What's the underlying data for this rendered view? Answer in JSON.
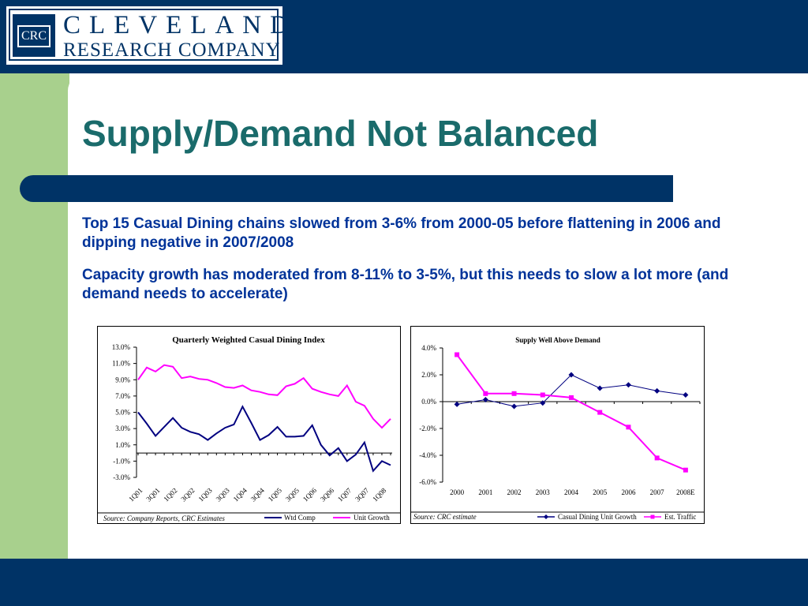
{
  "logo": {
    "mark": "CRC",
    "line1": "CLEVELAND",
    "line2": "RESEARCH COMPANY"
  },
  "slide": {
    "title": "Supply/Demand Not Balanced",
    "para1": "Top 15 Casual Dining chains slowed from 3-6% from 2000-05 before flattening in 2006 and dipping negative in 2007/2008",
    "para2": "Capacity growth has moderated from 8-11% to 3-5%, but this needs to slow a lot more (and demand needs to accelerate)"
  },
  "colors": {
    "navy": "#003366",
    "green": "#a8d08d",
    "title": "#1a6b6b",
    "text": "#003399",
    "wtd": "#000080",
    "unit": "#ff00ff"
  },
  "chart_data": [
    {
      "type": "line",
      "title": "Quarterly Weighted Casual Dining Index",
      "source": "Source: Company Reports, CRC Estimates",
      "ylim": [
        -3,
        13
      ],
      "y_ticks": [
        "13.0%",
        "11.0%",
        "9.0%",
        "7.0%",
        "5.0%",
        "3.0%",
        "1.0%",
        "-1.0%",
        "-3.0%"
      ],
      "x_labels": [
        "1Q01",
        "3Q01",
        "1Q02",
        "3Q02",
        "1Q03",
        "3Q03",
        "1Q04",
        "3Q04",
        "1Q05",
        "3Q05",
        "1Q06",
        "3Q06",
        "1Q07",
        "3Q07",
        "1Q08"
      ],
      "legend_position": "bottom-right",
      "series": [
        {
          "name": "Wtd Comp",
          "color": "#000080",
          "values": [
            5.0,
            3.6,
            2.1,
            3.2,
            4.3,
            3.1,
            2.6,
            2.3,
            1.6,
            2.4,
            3.1,
            3.5,
            5.7,
            3.7,
            1.6,
            2.2,
            3.2,
            2.0,
            2.0,
            2.1,
            3.4,
            1.0,
            -0.3,
            0.6,
            -1.0,
            -0.2,
            1.3,
            -2.2,
            -1.0,
            -1.5
          ]
        },
        {
          "name": "Unit Growth",
          "color": "#ff00ff",
          "values": [
            9.0,
            10.5,
            10.0,
            10.8,
            10.6,
            9.2,
            9.4,
            9.1,
            9.0,
            8.6,
            8.1,
            8.0,
            8.3,
            7.7,
            7.5,
            7.2,
            7.1,
            8.2,
            8.5,
            9.2,
            7.9,
            7.5,
            7.2,
            7.0,
            8.3,
            6.3,
            5.8,
            4.2,
            3.1,
            4.2
          ]
        }
      ]
    },
    {
      "type": "line",
      "title": "Supply Well Above Demand",
      "source": "Source: CRC estimate",
      "ylim": [
        -6,
        4
      ],
      "y_ticks": [
        "4.0%",
        "2.0%",
        "0.0%",
        "-2.0%",
        "-4.0%",
        "-6.0%"
      ],
      "categories": [
        "2000",
        "2001",
        "2002",
        "2003",
        "2004",
        "2005",
        "2006",
        "2007",
        "2008E"
      ],
      "legend_position": "bottom-right",
      "series": [
        {
          "name": "Casual Dining Unit Growth",
          "color": "#000080",
          "marker": "diamond",
          "values": [
            -0.2,
            0.15,
            -0.35,
            -0.1,
            2.0,
            1.0,
            1.25,
            0.8,
            0.5
          ]
        },
        {
          "name": "Est. Traffic",
          "color": "#ff00ff",
          "marker": "square",
          "values": [
            3.5,
            0.6,
            0.6,
            0.5,
            0.3,
            -0.8,
            -1.9,
            -4.2,
            -5.1
          ]
        }
      ]
    }
  ]
}
